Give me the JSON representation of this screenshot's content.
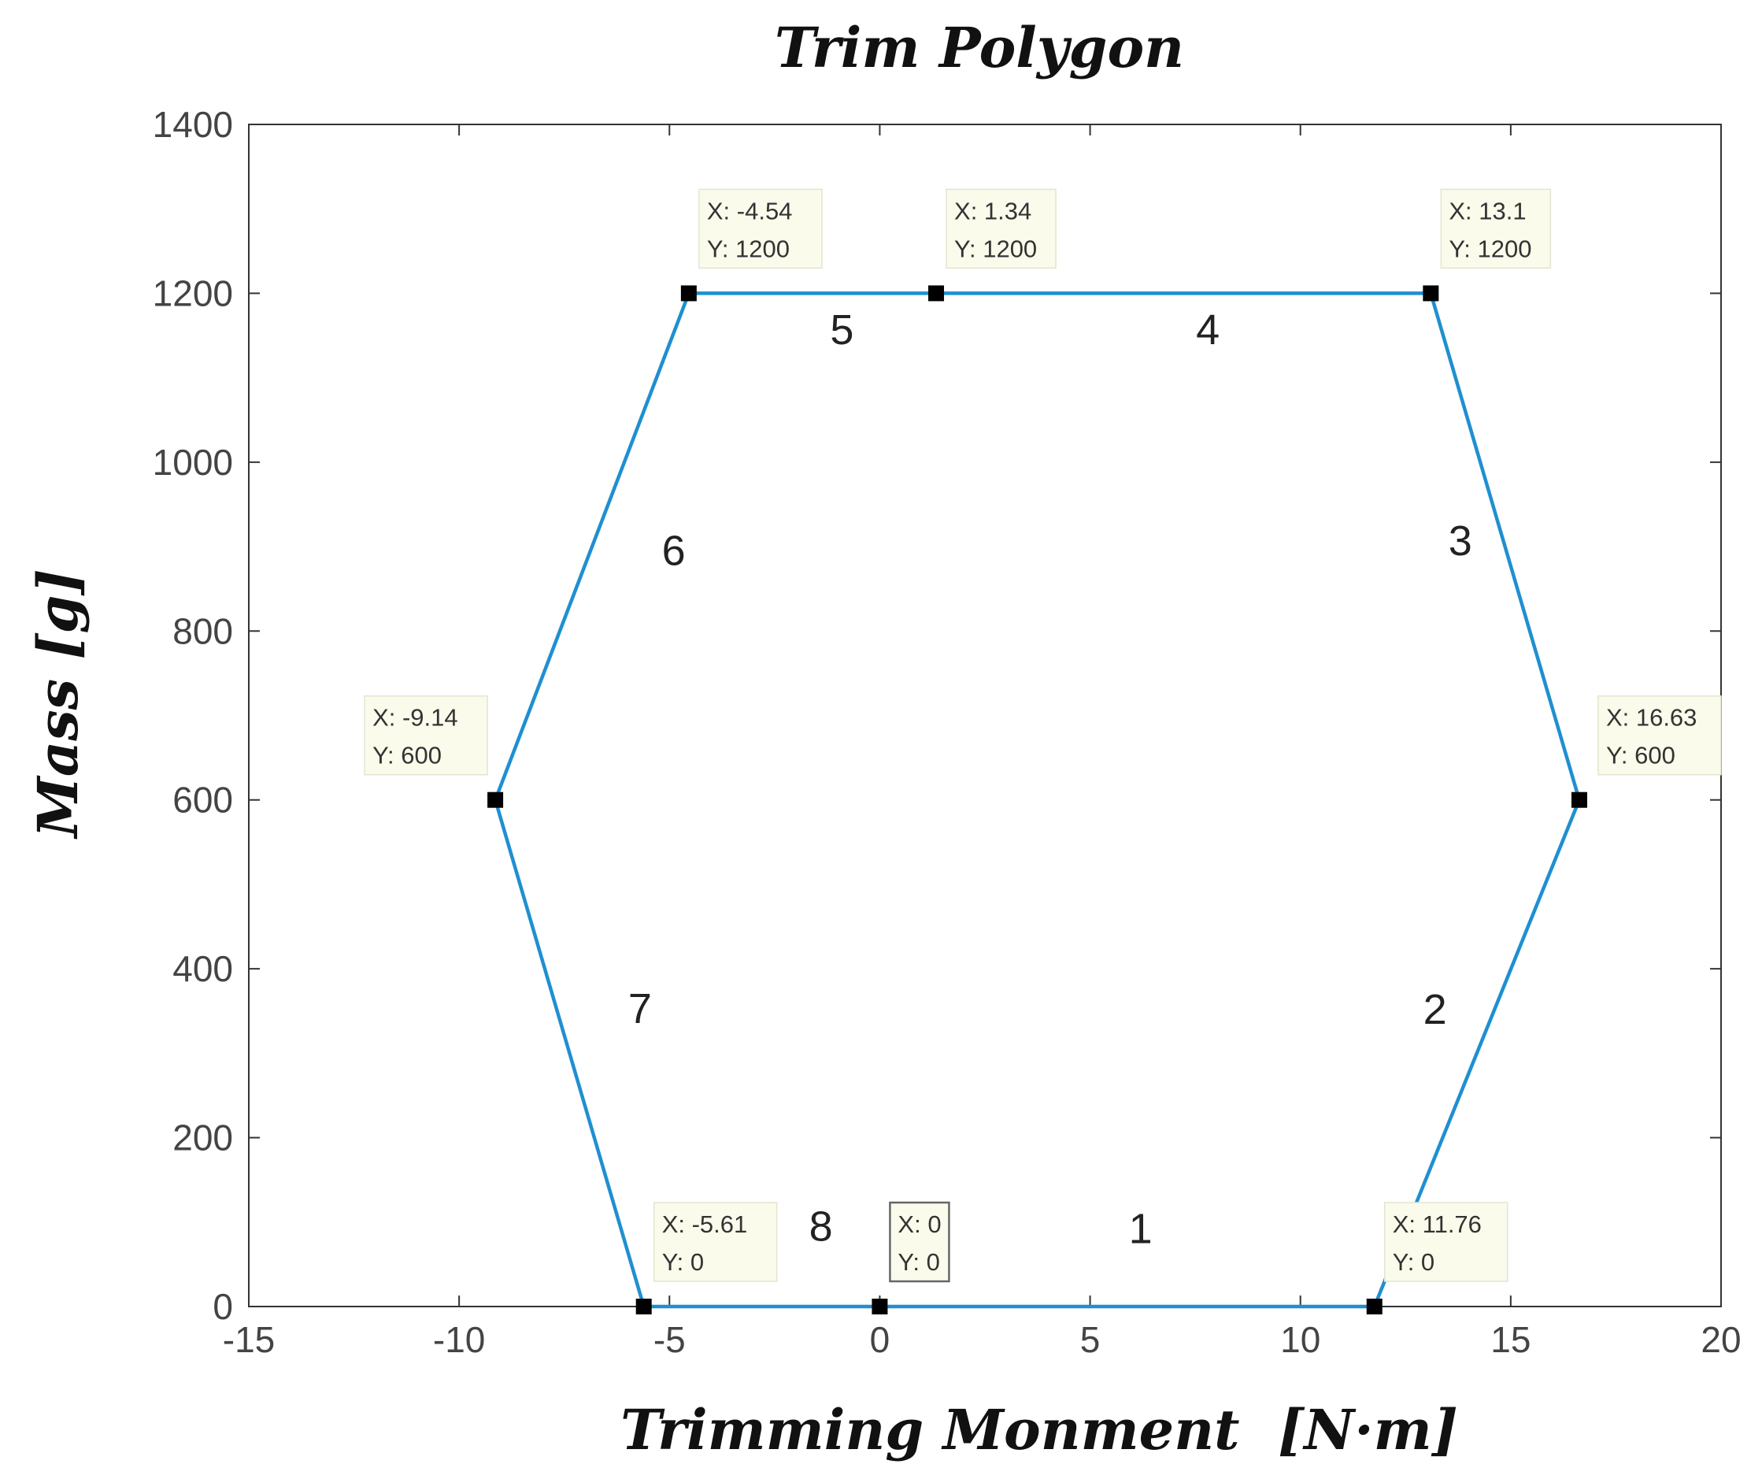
{
  "chart_data": {
    "type": "line",
    "title": "Trim Polygon",
    "xlabel": "Trimming Monment  [N·m]",
    "ylabel": "Mass [g]",
    "xlim": [
      -15,
      20
    ],
    "ylim": [
      0,
      1400
    ],
    "xticks": [
      -15,
      -10,
      -5,
      0,
      5,
      10,
      15,
      20
    ],
    "yticks": [
      0,
      200,
      400,
      600,
      800,
      1000,
      1200,
      1400
    ],
    "xtick_labels": [
      "-15",
      "-10",
      "-5",
      "0",
      "5",
      "10",
      "15",
      "20"
    ],
    "ytick_labels": [
      "0",
      "200",
      "400",
      "600",
      "800",
      "1000",
      "1200",
      "1400"
    ],
    "grid": false,
    "line_color": "#1f8fd1",
    "marker_color": "#000000",
    "series": [
      {
        "x": [
          0,
          11.76,
          16.63,
          13.1,
          1.34,
          -4.54,
          -9.14,
          -5.61,
          0
        ],
        "y": [
          0,
          0,
          600,
          1200,
          1200,
          1200,
          600,
          0,
          0
        ]
      }
    ],
    "datatips": [
      {
        "x": -4.54,
        "y": 1200,
        "x_text": "X: -4.54",
        "y_text": "Y: 1200",
        "selected": false
      },
      {
        "x": 1.34,
        "y": 1200,
        "x_text": "X: 1.34",
        "y_text": "Y: 1200",
        "selected": false
      },
      {
        "x": 13.1,
        "y": 1200,
        "x_text": "X: 13.1",
        "y_text": "Y: 1200",
        "selected": false
      },
      {
        "x": -9.14,
        "y": 600,
        "x_text": "X: -9.14",
        "y_text": "Y: 600",
        "selected": false
      },
      {
        "x": 16.63,
        "y": 600,
        "x_text": "X: 16.63",
        "y_text": "Y: 600",
        "selected": false
      },
      {
        "x": -5.61,
        "y": 0,
        "x_text": "X: -5.61",
        "y_text": "Y: 0",
        "selected": false
      },
      {
        "x": 0,
        "y": 0,
        "x_text": "X: 0",
        "y_text": "Y: 0",
        "selected": true
      },
      {
        "x": 11.76,
        "y": 0,
        "x_text": "X: 11.76",
        "y_text": "Y: 0",
        "selected": false
      }
    ],
    "segment_labels": [
      {
        "text": "1",
        "x": 6.2,
        "y": 75
      },
      {
        "text": "2",
        "x": 13.2,
        "y": 335
      },
      {
        "text": "3",
        "x": 13.8,
        "y": 890
      },
      {
        "text": "4",
        "x": 7.8,
        "y": 1140
      },
      {
        "text": "5",
        "x": -0.9,
        "y": 1140
      },
      {
        "text": "6",
        "x": -4.9,
        "y": 878
      },
      {
        "text": "7",
        "x": -5.7,
        "y": 336
      },
      {
        "text": "8",
        "x": -1.4,
        "y": 78
      }
    ]
  }
}
